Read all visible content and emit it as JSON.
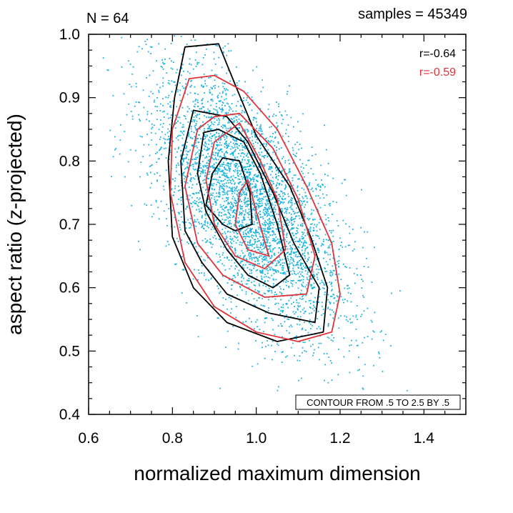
{
  "chart_data": {
    "type": "scatter",
    "title_left": "N = 64",
    "title_right": "samples = 45349",
    "xlabel": "normalized maximum dimension",
    "ylabel": "aspect ratio (z-projected)",
    "xlim": [
      0.6,
      1.5
    ],
    "ylim": [
      0.4,
      1.0
    ],
    "x_ticks": [
      0.6,
      0.8,
      1.0,
      1.2,
      1.4
    ],
    "x_tick_labels": [
      "0.6",
      "0.8",
      "1.0",
      "1.2",
      "1.4"
    ],
    "y_ticks": [
      0.4,
      0.5,
      0.6,
      0.7,
      0.8,
      0.9,
      1.0
    ],
    "y_tick_labels": [
      "0.4",
      "0.5",
      "0.6",
      "0.7",
      "0.8",
      "0.9",
      "1.0"
    ],
    "contour_note": "CONTOUR FROM .5 TO 2.5 BY .5",
    "scatter": {
      "color": "#1ab3e0",
      "count": 4200,
      "center": [
        0.98,
        0.735
      ],
      "std": [
        0.115,
        0.105
      ],
      "correlation": -0.62
    },
    "series": [
      {
        "name": "r=-0.64",
        "color": "#000000",
        "contours": [
          [
            [
              0.83,
              0.98
            ],
            [
              0.805,
              0.9
            ],
            [
              0.79,
              0.8
            ],
            [
              0.8,
              0.68
            ],
            [
              0.85,
              0.6
            ],
            [
              0.93,
              0.545
            ],
            [
              1.05,
              0.515
            ],
            [
              1.16,
              0.53
            ],
            [
              1.17,
              0.6
            ],
            [
              1.13,
              0.68
            ],
            [
              1.08,
              0.76
            ],
            [
              1.0,
              0.84
            ],
            [
              0.95,
              0.92
            ],
            [
              0.91,
              0.985
            ]
          ],
          [
            [
              0.85,
              0.88
            ],
            [
              0.82,
              0.8
            ],
            [
              0.83,
              0.69
            ],
            [
              0.87,
              0.64
            ],
            [
              0.93,
              0.59
            ],
            [
              1.03,
              0.56
            ],
            [
              1.14,
              0.545
            ],
            [
              1.15,
              0.6
            ],
            [
              1.09,
              0.67
            ],
            [
              1.04,
              0.75
            ],
            [
              0.98,
              0.83
            ],
            [
              0.93,
              0.87
            ]
          ],
          [
            [
              0.875,
              0.845
            ],
            [
              0.86,
              0.78
            ],
            [
              0.88,
              0.72
            ],
            [
              0.93,
              0.66
            ],
            [
              0.98,
              0.62
            ],
            [
              1.04,
              0.6
            ],
            [
              1.08,
              0.62
            ],
            [
              1.05,
              0.7
            ],
            [
              1.01,
              0.78
            ],
            [
              0.97,
              0.83
            ],
            [
              0.91,
              0.85
            ]
          ],
          [
            [
              0.895,
              0.78
            ],
            [
              0.88,
              0.73
            ],
            [
              0.92,
              0.7
            ],
            [
              0.95,
              0.69
            ],
            [
              0.99,
              0.7
            ],
            [
              0.985,
              0.75
            ],
            [
              0.96,
              0.8
            ],
            [
              0.92,
              0.805
            ]
          ]
        ]
      },
      {
        "name": "r=-0.59",
        "color": "#e0333a",
        "contours": [
          [
            [
              0.84,
              0.93
            ],
            [
              0.8,
              0.85
            ],
            [
              0.795,
              0.75
            ],
            [
              0.83,
              0.64
            ],
            [
              0.9,
              0.57
            ],
            [
              1.0,
              0.53
            ],
            [
              1.1,
              0.515
            ],
            [
              1.18,
              0.53
            ],
            [
              1.2,
              0.59
            ],
            [
              1.18,
              0.67
            ],
            [
              1.12,
              0.76
            ],
            [
              1.05,
              0.85
            ],
            [
              0.97,
              0.91
            ],
            [
              0.9,
              0.935
            ]
          ],
          [
            [
              0.86,
              0.85
            ],
            [
              0.83,
              0.76
            ],
            [
              0.86,
              0.67
            ],
            [
              0.92,
              0.62
            ],
            [
              1.02,
              0.585
            ],
            [
              1.12,
              0.59
            ],
            [
              1.14,
              0.65
            ],
            [
              1.1,
              0.74
            ],
            [
              1.04,
              0.82
            ],
            [
              0.96,
              0.875
            ],
            [
              0.9,
              0.87
            ]
          ],
          [
            [
              0.9,
              0.83
            ],
            [
              0.88,
              0.77
            ],
            [
              0.9,
              0.7
            ],
            [
              0.95,
              0.65
            ],
            [
              1.02,
              0.63
            ],
            [
              1.07,
              0.66
            ],
            [
              1.05,
              0.74
            ],
            [
              1.01,
              0.8
            ],
            [
              0.96,
              0.86
            ]
          ],
          [
            [
              0.96,
              0.75
            ],
            [
              0.95,
              0.7
            ],
            [
              0.98,
              0.66
            ],
            [
              1.03,
              0.65
            ],
            [
              1.0,
              0.72
            ],
            [
              0.98,
              0.77
            ]
          ]
        ]
      }
    ]
  }
}
